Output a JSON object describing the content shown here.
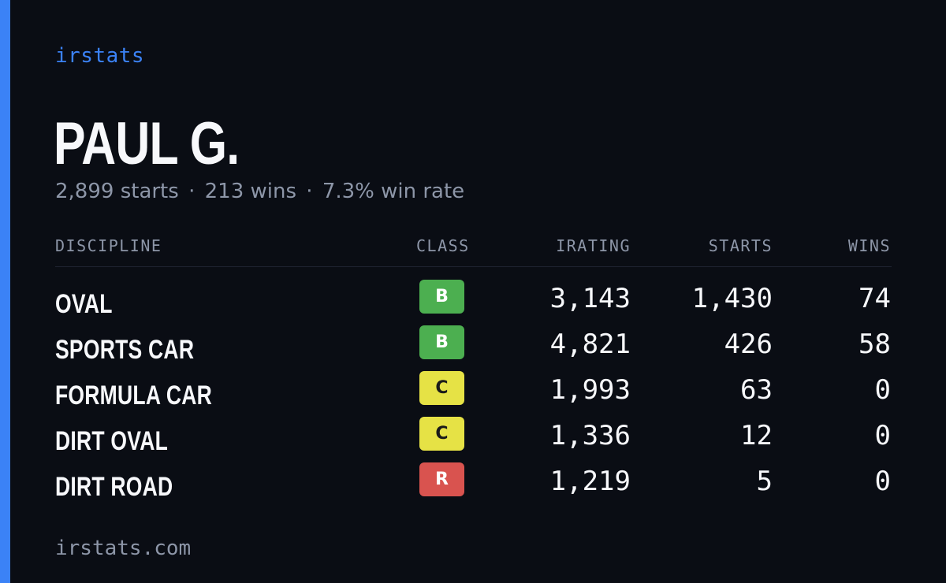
{
  "brand": "irstats",
  "driver": {
    "name": "PAUL G."
  },
  "summary": {
    "starts": "2,899 starts",
    "wins": "213 wins",
    "win_rate": "7.3% win rate",
    "separator": "·"
  },
  "table": {
    "headers": {
      "discipline": "DISCIPLINE",
      "class": "CLASS",
      "irating": "IRATING",
      "starts": "STARTS",
      "wins": "WINS"
    },
    "rows": [
      {
        "discipline": "OVAL",
        "class": "B",
        "class_color": "#4caf50",
        "class_text_color": "#ffffff",
        "irating": "3,143",
        "starts": "1,430",
        "wins": "74"
      },
      {
        "discipline": "SPORTS CAR",
        "class": "B",
        "class_color": "#4caf50",
        "class_text_color": "#ffffff",
        "irating": "4,821",
        "starts": "426",
        "wins": "58"
      },
      {
        "discipline": "FORMULA CAR",
        "class": "C",
        "class_color": "#e6e245",
        "class_text_color": "#1a1a1a",
        "irating": "1,993",
        "starts": "63",
        "wins": "0"
      },
      {
        "discipline": "DIRT OVAL",
        "class": "C",
        "class_color": "#e6e245",
        "class_text_color": "#1a1a1a",
        "irating": "1,336",
        "starts": "12",
        "wins": "0"
      },
      {
        "discipline": "DIRT ROAD",
        "class": "R",
        "class_color": "#d9534f",
        "class_text_color": "#ffffff",
        "irating": "1,219",
        "starts": "5",
        "wins": "0"
      }
    ]
  },
  "footer": {
    "url": "irstats.com"
  },
  "colors": {
    "accent": "#3b82f6",
    "background": "#0a0d14",
    "muted": "#8d96a8"
  }
}
